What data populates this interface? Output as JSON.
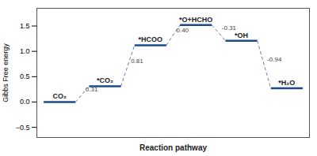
{
  "chart_data": {
    "type": "step",
    "categories": [
      "CO₂",
      "*CO₂",
      "*HCOO",
      "*O+HCHO",
      "*OH",
      "*H₂O"
    ],
    "values": [
      0.0,
      0.31,
      1.12,
      1.52,
      1.21,
      0.27
    ],
    "color": "#1a4a8a",
    "xlabel": "Reaction pathway",
    "ylabel": "Gibbs Free energy",
    "ylim": [
      -0.7,
      1.85
    ],
    "yticks": [
      {
        "value": -0.5,
        "label": "−0.5"
      },
      {
        "value": 0.0,
        "label": "0.0"
      },
      0.5,
      {
        "value": 1.0,
        "label": "1.0"
      },
      {
        "value": 1.5,
        "label": "1.5"
      }
    ],
    "annotations": [
      "0.31",
      "0.81",
      "0.40",
      "-0.31",
      "-0.94"
    ],
    "tick_labels": "y"
  }
}
